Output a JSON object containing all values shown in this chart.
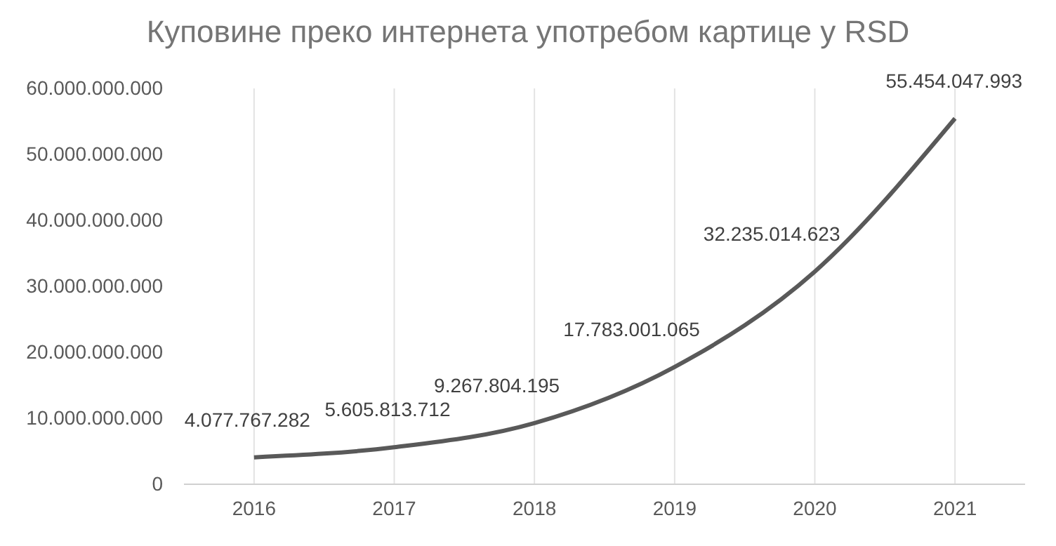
{
  "chart_data": {
    "type": "line",
    "title": "Куповине преко интернета употребом картице у RSD",
    "categories": [
      "2016",
      "2017",
      "2018",
      "2019",
      "2020",
      "2021"
    ],
    "series": [
      {
        "color": "#595959",
        "values": [
          4077767282,
          5605813712,
          9267804195,
          17783001065,
          32235014623,
          55454047993
        ],
        "value_labels": [
          "4.077.767.282",
          "5.605.813.712",
          "9.267.804.195",
          "17.783.001.065",
          "32.235.014.623",
          "55.454.047.993"
        ]
      }
    ],
    "ylim": [
      0,
      60000000000
    ],
    "yticks": [
      0,
      {
        "value": 10000000000,
        "label": "10.000.000.000"
      },
      {
        "value": 20000000000,
        "label": "20.000.000.000"
      },
      {
        "value": 30000000000,
        "label": "30.000.000.000"
      },
      {
        "value": 40000000000,
        "label": "40.000.000.000"
      },
      {
        "value": 50000000000,
        "label": "50.000.000.000"
      },
      {
        "value": 60000000000,
        "label": "60.000.000.000"
      }
    ],
    "grid": "x",
    "marker": "none",
    "line_style": "solid"
  }
}
